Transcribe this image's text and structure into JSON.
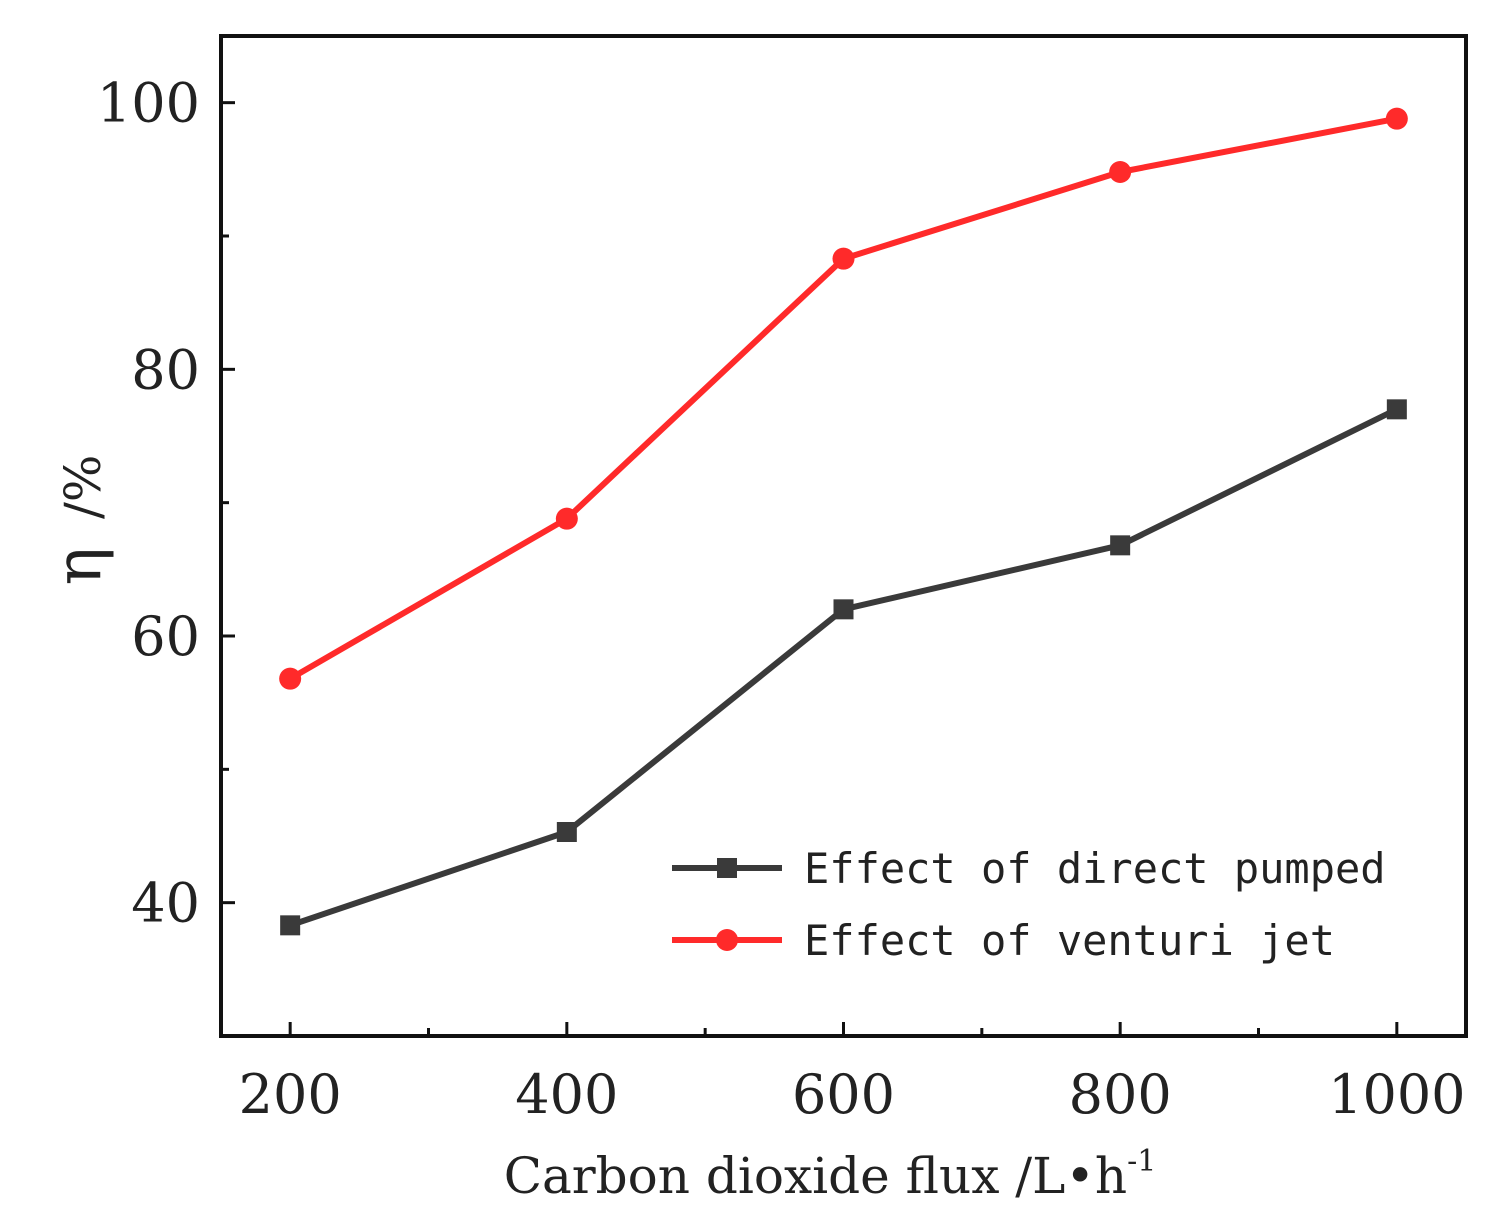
{
  "chart_data": {
    "type": "line",
    "title": "",
    "x": [
      200,
      400,
      600,
      800,
      1000
    ],
    "series": [
      {
        "name": "Effect of direct pumped",
        "values": [
          38.3,
          45.3,
          62.0,
          66.8,
          77.0
        ],
        "color": "#3a3a3a",
        "marker": "square"
      },
      {
        "name": "Effect of venturi jet",
        "values": [
          56.8,
          68.8,
          88.3,
          94.8,
          98.8
        ],
        "color": "#ff2a2a",
        "marker": "circle"
      }
    ],
    "xlabel": {
      "main": "Carbon dioxide flux /L",
      "bullet": "•",
      "unit": "h",
      "exponent": "-1"
    },
    "ylabel": {
      "symbol": "η",
      "unit": "/%"
    },
    "xlim": [
      150,
      1050
    ],
    "ylim": [
      30,
      105
    ],
    "xticks": [
      200,
      400,
      600,
      800,
      1000
    ],
    "xtick_labels": [
      "200",
      "400",
      "600",
      "800",
      "1000"
    ],
    "xminor_ticks": [
      300,
      500,
      700,
      900
    ],
    "yticks": [
      40,
      60,
      80,
      100
    ],
    "ytick_labels": [
      "40",
      "60",
      "80",
      "100"
    ],
    "yminor_ticks": [
      50,
      70,
      90
    ],
    "grid": false,
    "legend_position": "bottom-right"
  }
}
